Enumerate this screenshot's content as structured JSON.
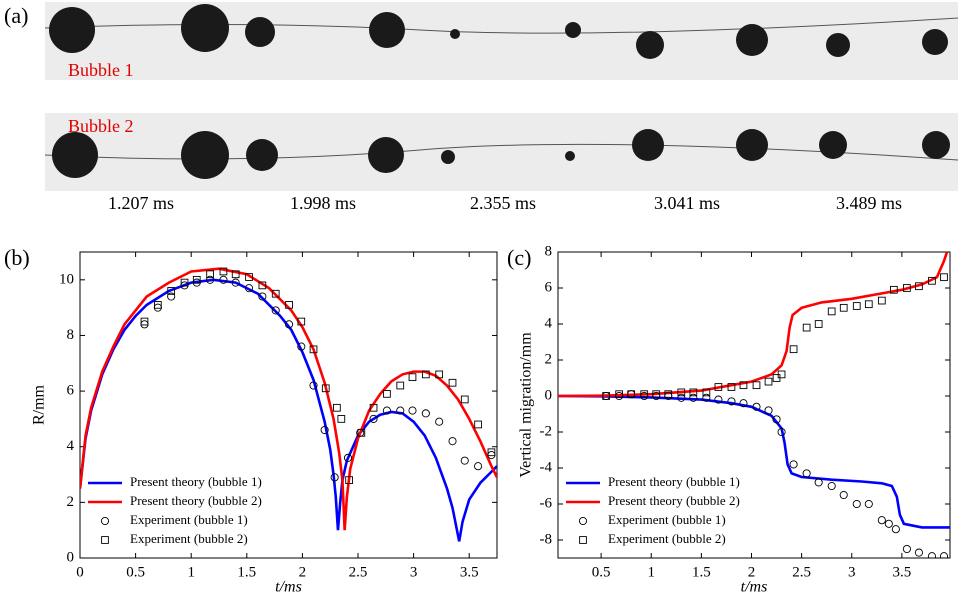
{
  "panel_a": {
    "label": "(a)",
    "rows": [
      "Bubble 1",
      "Bubble 2"
    ],
    "times": [
      "1.207 ms",
      "1.998 ms",
      "2.355 ms",
      "3.041 ms",
      "3.489 ms"
    ]
  },
  "chart_data": [
    {
      "type": "line",
      "panel": "(b)",
      "xlabel": "t/ms",
      "ylabel": "R/mm",
      "xlim": [
        0,
        3.75
      ],
      "ylim": [
        0,
        11
      ],
      "xticks": [
        0,
        0.5,
        1,
        1.5,
        2,
        2.5,
        3,
        3.5
      ],
      "yticks": [
        0,
        2,
        4,
        6,
        8,
        10
      ],
      "legend": "lower left",
      "series": [
        {
          "name": "Present theory (bubble 1)",
          "color": "#0000ff",
          "style": "line",
          "x": [
            0,
            0.05,
            0.1,
            0.2,
            0.3,
            0.4,
            0.5,
            0.6,
            0.8,
            1.0,
            1.2,
            1.4,
            1.6,
            1.8,
            1.9,
            2.0,
            2.1,
            2.2,
            2.25,
            2.28,
            2.3,
            2.32,
            2.34,
            2.36,
            2.4,
            2.5,
            2.6,
            2.7,
            2.8,
            2.9,
            3.0,
            3.1,
            3.2,
            3.3,
            3.35,
            3.38,
            3.41,
            3.44,
            3.5,
            3.6,
            3.7,
            3.75
          ],
          "values": [
            2.5,
            4.3,
            5.3,
            6.6,
            7.5,
            8.2,
            8.7,
            9.1,
            9.6,
            9.9,
            10.0,
            9.9,
            9.5,
            8.7,
            8.2,
            7.4,
            6.4,
            4.9,
            3.9,
            3.0,
            2.2,
            1.0,
            2.0,
            2.8,
            3.5,
            4.4,
            4.9,
            5.15,
            5.25,
            5.2,
            4.9,
            4.4,
            3.6,
            2.5,
            1.8,
            1.2,
            0.6,
            1.3,
            2.1,
            2.7,
            3.1,
            3.3
          ]
        },
        {
          "name": "Present theory (bubble 2)",
          "color": "#ff0000",
          "style": "line",
          "x": [
            0,
            0.05,
            0.1,
            0.2,
            0.3,
            0.4,
            0.5,
            0.6,
            0.8,
            1.0,
            1.25,
            1.5,
            1.7,
            1.9,
            2.0,
            2.1,
            2.2,
            2.28,
            2.33,
            2.36,
            2.38,
            2.4,
            2.43,
            2.5,
            2.6,
            2.7,
            2.8,
            2.9,
            3.0,
            3.1,
            3.2,
            3.3,
            3.4,
            3.5,
            3.6,
            3.7,
            3.75
          ],
          "values": [
            2.5,
            4.4,
            5.4,
            6.7,
            7.6,
            8.4,
            8.9,
            9.4,
            9.9,
            10.3,
            10.4,
            10.2,
            9.7,
            8.9,
            8.3,
            7.5,
            6.3,
            5.0,
            3.8,
            2.8,
            1.0,
            2.2,
            3.2,
            4.3,
            5.3,
            5.9,
            6.35,
            6.6,
            6.7,
            6.7,
            6.55,
            6.2,
            5.7,
            5.0,
            4.2,
            3.3,
            2.9
          ]
        },
        {
          "name": "Experiment (bubble 1)",
          "color": "#000000",
          "style": "circle",
          "x": [
            0.58,
            0.7,
            0.82,
            0.94,
            1.05,
            1.17,
            1.29,
            1.4,
            1.52,
            1.64,
            1.76,
            1.88,
            1.99,
            2.1,
            2.2,
            2.29,
            2.41,
            2.52,
            2.64,
            2.76,
            2.88,
            2.99,
            3.11,
            3.23,
            3.35,
            3.46,
            3.58,
            3.7
          ],
          "values": [
            8.4,
            9.0,
            9.4,
            9.8,
            9.9,
            10.0,
            10.0,
            9.9,
            9.7,
            9.4,
            8.9,
            8.4,
            7.6,
            6.2,
            4.6,
            2.9,
            3.6,
            4.5,
            5.0,
            5.3,
            5.3,
            5.3,
            5.2,
            4.9,
            4.2,
            3.5,
            3.3,
            3.7
          ]
        },
        {
          "name": "Experiment (bubble 2)",
          "color": "#000000",
          "style": "square",
          "x": [
            0.58,
            0.7,
            0.82,
            0.94,
            1.05,
            1.17,
            1.29,
            1.4,
            1.52,
            1.64,
            1.76,
            1.88,
            1.99,
            2.1,
            2.21,
            2.31,
            2.35,
            2.42,
            2.53,
            2.64,
            2.76,
            2.88,
            2.99,
            3.11,
            3.23,
            3.35,
            3.46,
            3.58,
            3.7
          ],
          "values": [
            8.5,
            9.1,
            9.6,
            9.9,
            10.0,
            10.2,
            10.3,
            10.2,
            10.1,
            9.8,
            9.5,
            9.1,
            8.5,
            7.5,
            6.1,
            5.4,
            5.0,
            2.8,
            4.5,
            5.4,
            5.9,
            6.2,
            6.5,
            6.6,
            6.6,
            6.3,
            5.7,
            4.8,
            3.8
          ]
        }
      ]
    },
    {
      "type": "line",
      "panel": "(c)",
      "xlabel": "t/ms",
      "ylabel": "Vertical migration/mm",
      "xlim": [
        0.07,
        3.98
      ],
      "ylim": [
        -9,
        8
      ],
      "xticks": [
        0.5,
        1,
        1.5,
        2,
        2.5,
        3,
        3.5
      ],
      "yticks": [
        -8,
        -6,
        -4,
        -2,
        0,
        2,
        4,
        6,
        8
      ],
      "legend": "lower left",
      "series": [
        {
          "name": "Present theory (bubble 1)",
          "color": "#0000ff",
          "style": "line",
          "x": [
            0.07,
            0.5,
            1.0,
            1.5,
            1.8,
            2.0,
            2.2,
            2.3,
            2.33,
            2.36,
            2.4,
            2.5,
            2.8,
            3.1,
            3.3,
            3.4,
            3.45,
            3.48,
            3.52,
            3.7,
            3.98
          ],
          "values": [
            0,
            -0.02,
            -0.08,
            -0.2,
            -0.4,
            -0.6,
            -1.1,
            -1.8,
            -2.6,
            -3.8,
            -4.3,
            -4.5,
            -4.65,
            -4.75,
            -4.85,
            -5.0,
            -5.6,
            -6.6,
            -7.1,
            -7.3,
            -7.3
          ]
        },
        {
          "name": "Present theory (bubble 2)",
          "color": "#ff0000",
          "style": "line",
          "x": [
            0.07,
            0.5,
            1.0,
            1.5,
            1.8,
            2.0,
            2.2,
            2.3,
            2.35,
            2.38,
            2.41,
            2.5,
            2.7,
            3.0,
            3.3,
            3.5,
            3.7,
            3.85,
            3.92,
            3.95
          ],
          "values": [
            0,
            0.02,
            0.1,
            0.3,
            0.6,
            0.8,
            1.2,
            1.7,
            2.5,
            3.8,
            4.5,
            4.9,
            5.2,
            5.4,
            5.7,
            5.9,
            6.2,
            6.6,
            7.5,
            8.0
          ]
        },
        {
          "name": "Experiment (bubble 1)",
          "color": "#000000",
          "style": "circle",
          "x": [
            0.55,
            0.68,
            0.8,
            0.93,
            1.05,
            1.17,
            1.3,
            1.42,
            1.55,
            1.67,
            1.8,
            1.92,
            2.05,
            2.17,
            2.25,
            2.3,
            2.42,
            2.55,
            2.67,
            2.8,
            2.92,
            3.05,
            3.17,
            3.3,
            3.37,
            3.44,
            3.55,
            3.67,
            3.8,
            3.92
          ],
          "values": [
            0,
            0,
            0.1,
            0,
            0,
            0,
            -0.1,
            -0.1,
            -0.1,
            -0.2,
            -0.3,
            -0.4,
            -0.6,
            -0.8,
            -1.3,
            -2.0,
            -3.8,
            -4.3,
            -4.8,
            -5.0,
            -5.5,
            -6.0,
            -6.0,
            -6.9,
            -7.1,
            -7.4,
            -8.5,
            -8.7,
            -8.9,
            -8.9
          ]
        },
        {
          "name": "Experiment (bubble 2)",
          "color": "#000000",
          "style": "square",
          "x": [
            0.55,
            0.68,
            0.8,
            0.93,
            1.05,
            1.17,
            1.3,
            1.42,
            1.55,
            1.67,
            1.8,
            1.92,
            2.05,
            2.17,
            2.25,
            2.3,
            2.42,
            2.55,
            2.67,
            2.8,
            2.92,
            3.05,
            3.17,
            3.3,
            3.42,
            3.55,
            3.67,
            3.8,
            3.92
          ],
          "values": [
            0,
            0.1,
            0.1,
            0.1,
            0.1,
            0.1,
            0.2,
            0.2,
            0.2,
            0.5,
            0.5,
            0.6,
            0.6,
            0.8,
            1.0,
            1.2,
            2.6,
            3.8,
            4.0,
            4.7,
            4.9,
            5.0,
            5.1,
            5.3,
            5.9,
            6.0,
            6.1,
            6.4,
            6.6
          ]
        }
      ]
    }
  ]
}
